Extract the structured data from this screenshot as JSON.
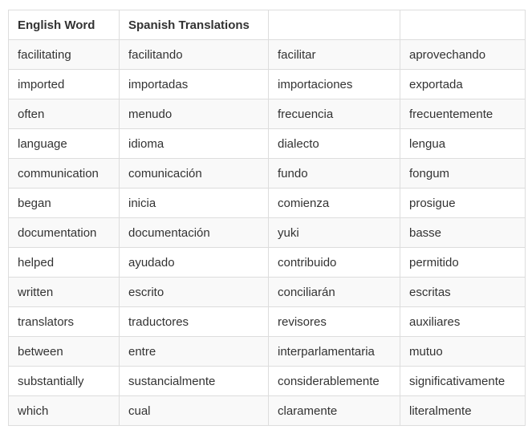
{
  "table": {
    "headers": [
      "English Word",
      "Spanish Translations",
      "",
      ""
    ],
    "rows": [
      [
        "facilitating",
        "facilitando",
        "facilitar",
        "aprovechando"
      ],
      [
        "imported",
        "importadas",
        "importaciones",
        "exportada"
      ],
      [
        "often",
        "menudo",
        "frecuencia",
        "frecuentemente"
      ],
      [
        "language",
        "idioma",
        "dialecto",
        "lengua"
      ],
      [
        "communication",
        "comunicación",
        "fundo",
        "fongum"
      ],
      [
        "began",
        "inicia",
        "comienza",
        "prosigue"
      ],
      [
        "documentation",
        "documentación",
        "yuki",
        "basse"
      ],
      [
        "helped",
        "ayudado",
        "contribuido",
        "permitido"
      ],
      [
        "written",
        "escrito",
        "conciliarán",
        "escritas"
      ],
      [
        "translators",
        "traductores",
        "revisores",
        "auxiliares"
      ],
      [
        "between",
        "entre",
        "interparlamentaria",
        "mutuo"
      ],
      [
        "substantially",
        "sustancialmente",
        "considerablemente",
        "significativamente"
      ],
      [
        "which",
        "cual",
        "claramente",
        "literalmente"
      ]
    ]
  }
}
